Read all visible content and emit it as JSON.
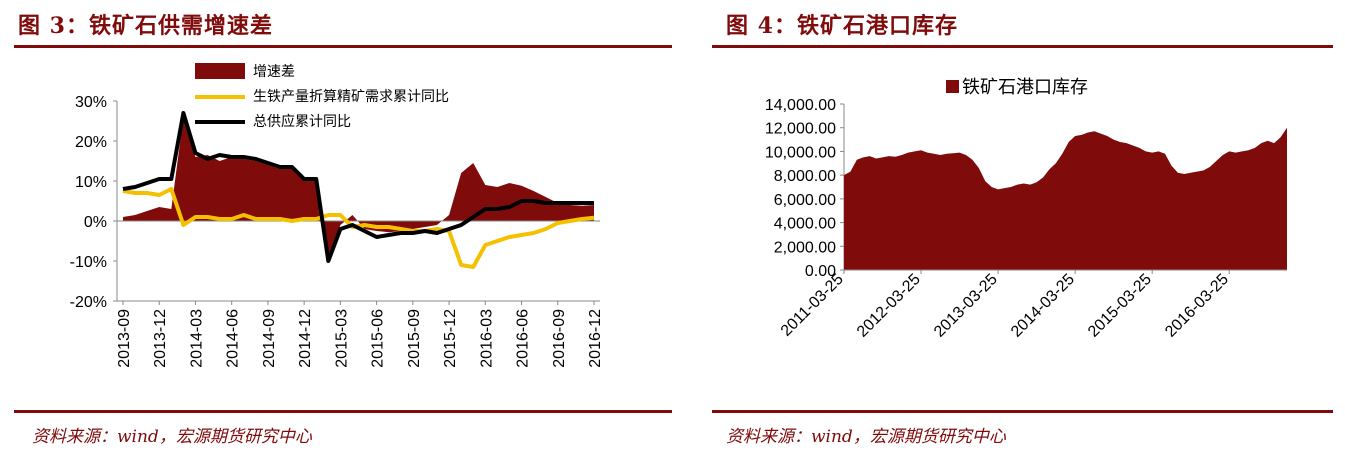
{
  "panel1": {
    "title": "图 3：铁矿石供需增速差",
    "source": "资料来源：wind，宏源期货研究中心"
  },
  "panel2": {
    "title": "图 4：铁矿石港口库存",
    "source": "资料来源：wind，宏源期货研究中心"
  },
  "colors": {
    "accent": "#7f0b0b",
    "area": "#7f0b0b",
    "yellow": "#f5c000",
    "black": "#000000"
  },
  "chart_data": [
    {
      "type": "line",
      "title": "",
      "xlabel": "",
      "ylabel": "",
      "ylim": [
        -20,
        30
      ],
      "y_ticks": [
        "30%",
        "20%",
        "10%",
        "0%",
        "-10%",
        "-20%"
      ],
      "categories": [
        "2013-09",
        "2013-10",
        "2013-11",
        "2013-12",
        "2014-01",
        "2014-02",
        "2014-03",
        "2014-04",
        "2014-05",
        "2014-06",
        "2014-07",
        "2014-08",
        "2014-09",
        "2014-10",
        "2014-11",
        "2014-12",
        "2015-01",
        "2015-02",
        "2015-03",
        "2015-04",
        "2015-05",
        "2015-06",
        "2015-07",
        "2015-08",
        "2015-09",
        "2015-10",
        "2015-11",
        "2015-12",
        "2016-01",
        "2016-02",
        "2016-03",
        "2016-04",
        "2016-05",
        "2016-06",
        "2016-07",
        "2016-08",
        "2016-09",
        "2016-10",
        "2016-11",
        "2016-12"
      ],
      "x_tick_labels": [
        "2013-09",
        "2013-12",
        "2014-03",
        "2014-06",
        "2014-09",
        "2014-12",
        "2015-03",
        "2015-06",
        "2015-09",
        "2015-12",
        "2016-03",
        "2016-06",
        "2016-09",
        "2016-12"
      ],
      "legend": [
        "增速差",
        "生铁产量折算精矿需求累计同比",
        "总供应累计同比"
      ],
      "legend_position": "top",
      "series": [
        {
          "name": "增速差",
          "kind": "area",
          "values": [
            1.0,
            1.5,
            2.5,
            3.5,
            3.0,
            26.0,
            16.0,
            16.5,
            15.0,
            16.0,
            15.5,
            15.0,
            14.0,
            13.0,
            13.0,
            10.0,
            10.5,
            -10.0,
            -1.0,
            1.5,
            -2.0,
            -2.5,
            -2.8,
            -2.5,
            -2.0,
            -1.5,
            -1.0,
            1.5,
            12.0,
            14.5,
            9.0,
            8.5,
            9.5,
            8.8,
            7.5,
            6.0,
            4.5,
            4.0,
            3.8,
            4.0
          ]
        },
        {
          "name": "生铁产量折算精矿需求累计同比",
          "kind": "line",
          "values": [
            7.5,
            7.0,
            7.0,
            6.5,
            8.0,
            -1.0,
            1.0,
            1.0,
            0.5,
            0.5,
            1.5,
            0.5,
            0.5,
            0.5,
            0.0,
            0.5,
            0.5,
            1.5,
            1.5,
            -1.5,
            -1.0,
            -1.5,
            -1.5,
            -2.0,
            -2.5,
            -2.5,
            -2.0,
            -2.5,
            -11.0,
            -11.5,
            -6.0,
            -5.0,
            -4.0,
            -3.5,
            -3.0,
            -2.0,
            -0.5,
            0.0,
            0.5,
            0.8
          ]
        },
        {
          "name": "总供应累计同比",
          "kind": "line",
          "values": [
            8.0,
            8.5,
            9.5,
            10.5,
            10.5,
            27.0,
            17.0,
            15.5,
            16.5,
            16.0,
            16.0,
            15.5,
            14.5,
            13.5,
            13.5,
            10.5,
            10.5,
            -10.0,
            -2.0,
            -1.0,
            -2.5,
            -4.0,
            -3.5,
            -3.0,
            -3.0,
            -2.5,
            -3.0,
            -2.0,
            -1.0,
            1.0,
            3.0,
            3.0,
            3.5,
            5.0,
            5.0,
            4.5,
            4.5,
            4.5,
            4.5,
            4.5
          ]
        }
      ]
    },
    {
      "type": "area",
      "title": "",
      "xlabel": "",
      "ylabel": "",
      "ylim": [
        0,
        14000
      ],
      "y_ticks": [
        "14,000.00",
        "12,000.00",
        "10,000.00",
        "8,000.00",
        "6,000.00",
        "4,000.00",
        "2,000.00",
        "0.00"
      ],
      "x_tick_labels": [
        "2011-03-25",
        "2012-03-25",
        "2013-03-25",
        "2014-03-25",
        "2015-03-25",
        "2016-03-25"
      ],
      "legend": [
        "铁矿石港口库存"
      ],
      "legend_position": "top",
      "x": [
        "2011-03-25",
        "2011-04-25",
        "2011-05-25",
        "2011-06-25",
        "2011-07-25",
        "2011-08-25",
        "2011-09-25",
        "2011-10-25",
        "2011-11-25",
        "2011-12-25",
        "2012-01-25",
        "2012-02-25",
        "2012-03-25",
        "2012-04-25",
        "2012-05-25",
        "2012-06-25",
        "2012-07-25",
        "2012-08-25",
        "2012-09-25",
        "2012-10-25",
        "2012-11-25",
        "2012-12-25",
        "2013-01-25",
        "2013-02-25",
        "2013-03-25",
        "2013-04-25",
        "2013-05-25",
        "2013-06-25",
        "2013-07-25",
        "2013-08-25",
        "2013-09-25",
        "2013-10-25",
        "2013-11-25",
        "2013-12-25",
        "2014-01-25",
        "2014-02-25",
        "2014-03-25",
        "2014-04-25",
        "2014-05-25",
        "2014-06-25",
        "2014-07-25",
        "2014-08-25",
        "2014-09-25",
        "2014-10-25",
        "2014-11-25",
        "2014-12-25",
        "2015-01-25",
        "2015-02-25",
        "2015-03-25",
        "2015-04-25",
        "2015-05-25",
        "2015-06-25",
        "2015-07-25",
        "2015-08-25",
        "2015-09-25",
        "2015-10-25",
        "2015-11-25",
        "2015-12-25",
        "2016-01-25",
        "2016-02-25",
        "2016-03-25",
        "2016-04-25",
        "2016-05-25",
        "2016-06-25",
        "2016-07-25",
        "2016-08-25",
        "2016-09-25",
        "2016-10-25",
        "2016-11-25",
        "2016-12-25"
      ],
      "series": [
        {
          "name": "铁矿石港口库存",
          "values": [
            8000,
            8300,
            9300,
            9500,
            9600,
            9400,
            9500,
            9600,
            9550,
            9700,
            9900,
            10000,
            10100,
            9900,
            9800,
            9700,
            9800,
            9850,
            9900,
            9700,
            9300,
            8600,
            7500,
            7000,
            6800,
            6900,
            7000,
            7200,
            7300,
            7200,
            7400,
            7800,
            8500,
            9000,
            9800,
            10800,
            11300,
            11400,
            11600,
            11700,
            11500,
            11300,
            11000,
            10800,
            10700,
            10500,
            10300,
            10000,
            9900,
            10000,
            9800,
            8800,
            8200,
            8100,
            8200,
            8300,
            8400,
            8700,
            9200,
            9700,
            10000,
            9900,
            10000,
            10100,
            10300,
            10700,
            10900,
            10700,
            11200,
            12000
          ]
        }
      ]
    }
  ]
}
